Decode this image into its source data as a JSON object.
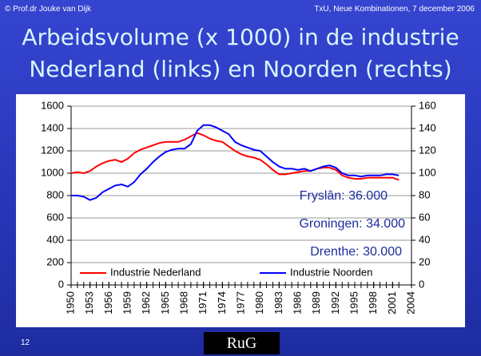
{
  "slide": {
    "copyright": "© Prof.dr Jouke van Dijk",
    "event": "TxU, Neue Kombinationen, 7 december 2006",
    "page": "12",
    "logo": "RuG"
  },
  "chart_data": {
    "type": "line",
    "title": [
      "Arbeidsvolume (x 1000) in de industrie",
      "Nederland (links) en Noorden (rechts)"
    ],
    "x": [
      1950,
      1951,
      1952,
      1953,
      1954,
      1955,
      1956,
      1957,
      1958,
      1959,
      1960,
      1961,
      1962,
      1963,
      1964,
      1965,
      1966,
      1967,
      1968,
      1969,
      1970,
      1971,
      1972,
      1973,
      1974,
      1975,
      1976,
      1977,
      1978,
      1979,
      1980,
      1981,
      1982,
      1983,
      1984,
      1985,
      1986,
      1987,
      1988,
      1989,
      1990,
      1991,
      1992,
      1993,
      1994,
      1995,
      1996,
      1997,
      1998,
      1999,
      2000,
      2001,
      2002
    ],
    "series": [
      {
        "name": "Industrie Nederland",
        "color": "#ff0000",
        "values": [
          1000,
          1010,
          1000,
          1020,
          1060,
          1090,
          1110,
          1120,
          1100,
          1130,
          1180,
          1210,
          1230,
          1250,
          1270,
          1280,
          1280,
          1280,
          1300,
          1330,
          1360,
          1340,
          1310,
          1290,
          1280,
          1240,
          1200,
          1170,
          1150,
          1140,
          1120,
          1080,
          1030,
          990,
          990,
          1000,
          1010,
          1020,
          1020,
          1040,
          1050,
          1050,
          1030,
          980,
          960,
          950,
          950,
          960,
          960,
          960,
          960,
          960,
          940
        ]
      },
      {
        "name": "Industrie Noorden",
        "color": "#0000ff",
        "axis": "y2",
        "values": [
          80,
          80,
          79,
          76,
          78,
          83,
          86,
          89,
          90,
          88,
          92,
          99,
          104,
          110,
          115,
          119,
          121,
          122,
          122,
          126,
          138,
          143,
          143,
          141,
          138,
          135,
          128,
          125,
          123,
          121,
          120,
          115,
          110,
          106,
          104,
          104,
          103,
          104,
          102,
          104,
          106,
          107,
          105,
          100,
          98,
          98,
          97,
          98,
          98,
          98,
          99,
          99,
          98
        ]
      }
    ],
    "xlim": [
      1950,
      2004
    ],
    "xticks": [
      1950,
      1953,
      1956,
      1959,
      1962,
      1965,
      1968,
      1971,
      1974,
      1977,
      1980,
      1983,
      1986,
      1989,
      1992,
      1995,
      1998,
      2001,
      2004
    ],
    "ylim": [
      0,
      1600
    ],
    "yticks": [
      0,
      200,
      400,
      600,
      800,
      1000,
      1200,
      1400,
      1600
    ],
    "y2lim": [
      0,
      160
    ],
    "y2ticks": [
      0,
      20,
      40,
      60,
      80,
      100,
      120,
      140,
      160
    ],
    "grid": true,
    "legend": "bottom",
    "annotations": [
      "Fryslân: 36.000",
      "Groningen: 34.000",
      "Drenthe: 30.000"
    ]
  }
}
